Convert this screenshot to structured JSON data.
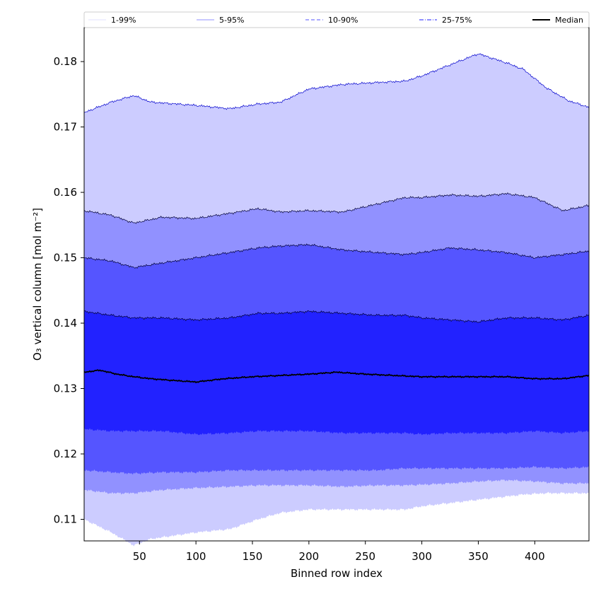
{
  "chart_data": {
    "type": "area",
    "xlabel": "Binned row index",
    "ylabel": "O₃ vertical column [mol m⁻²]",
    "xlim": [
      1,
      448
    ],
    "ylim": [
      0.1067,
      0.1852
    ],
    "xticks": [
      50,
      100,
      150,
      200,
      250,
      300,
      350,
      400
    ],
    "yticks": [
      0.11,
      0.12,
      0.13,
      0.14,
      0.15,
      0.16,
      0.17,
      0.18
    ],
    "grid": false,
    "legend_position": "top",
    "bands": [
      {
        "name": "1-99%",
        "color": "#ccccff",
        "edge_color": "#0000cc",
        "x": [
          1,
          25,
          45,
          60,
          100,
          130,
          155,
          175,
          200,
          230,
          260,
          285,
          300,
          325,
          350,
          375,
          390,
          410,
          430,
          448
        ],
        "upper": [
          0.1722,
          0.1738,
          0.1748,
          0.1738,
          0.1733,
          0.1728,
          0.1735,
          0.1738,
          0.1758,
          0.1765,
          0.1768,
          0.177,
          0.1778,
          0.1795,
          0.1812,
          0.1798,
          0.1788,
          0.176,
          0.174,
          0.173
        ],
        "lower": [
          0.11,
          0.108,
          0.106,
          0.107,
          0.108,
          0.1085,
          0.11,
          0.111,
          0.1115,
          0.1115,
          0.1115,
          0.1115,
          0.112,
          0.1125,
          0.113,
          0.1135,
          0.1138,
          0.114,
          0.114,
          0.114
        ]
      },
      {
        "name": "5-95%",
        "color": "#9191ff",
        "edge_color": "#000033",
        "x": [
          1,
          25,
          45,
          70,
          100,
          130,
          155,
          175,
          200,
          230,
          260,
          285,
          300,
          325,
          350,
          375,
          400,
          425,
          448
        ],
        "upper": [
          0.1572,
          0.1565,
          0.1553,
          0.1562,
          0.156,
          0.1568,
          0.1575,
          0.157,
          0.1572,
          0.157,
          0.1582,
          0.1592,
          0.1592,
          0.1596,
          0.1594,
          0.1598,
          0.1592,
          0.1572,
          0.158
        ],
        "lower": [
          0.1145,
          0.114,
          0.114,
          0.1145,
          0.1148,
          0.115,
          0.1152,
          0.1152,
          0.1152,
          0.115,
          0.1152,
          0.1152,
          0.1153,
          0.1155,
          0.1158,
          0.116,
          0.1158,
          0.1155,
          0.1155
        ]
      },
      {
        "name": "10-90%",
        "color": "#5555ff",
        "edge_color": "#000033",
        "x": [
          1,
          25,
          45,
          70,
          100,
          130,
          155,
          175,
          200,
          230,
          260,
          285,
          300,
          325,
          350,
          375,
          400,
          425,
          448
        ],
        "upper": [
          0.15,
          0.1495,
          0.1485,
          0.1492,
          0.15,
          0.1508,
          0.1515,
          0.1518,
          0.152,
          0.1512,
          0.1508,
          0.1505,
          0.1508,
          0.1515,
          0.1512,
          0.1508,
          0.15,
          0.1505,
          0.151
        ],
        "lower": [
          0.1175,
          0.1172,
          0.117,
          0.1172,
          0.1172,
          0.1175,
          0.1175,
          0.1175,
          0.1175,
          0.1175,
          0.1175,
          0.1178,
          0.1178,
          0.1178,
          0.1178,
          0.1178,
          0.118,
          0.1178,
          0.118
        ]
      },
      {
        "name": "25-75%",
        "color": "#2222ff",
        "edge_color": "#000033",
        "x": [
          1,
          25,
          45,
          70,
          100,
          130,
          155,
          175,
          200,
          230,
          260,
          285,
          300,
          325,
          350,
          375,
          400,
          425,
          448
        ],
        "upper": [
          0.1418,
          0.1412,
          0.1408,
          0.1408,
          0.1405,
          0.1408,
          0.1415,
          0.1415,
          0.1418,
          0.1415,
          0.1412,
          0.1412,
          0.1408,
          0.1405,
          0.1402,
          0.1408,
          0.1408,
          0.1405,
          0.1412
        ],
        "lower": [
          0.1238,
          0.1235,
          0.1235,
          0.1235,
          0.123,
          0.1232,
          0.1235,
          0.1235,
          0.1235,
          0.1232,
          0.1232,
          0.1232,
          0.123,
          0.1232,
          0.1232,
          0.1232,
          0.1235,
          0.1232,
          0.1235
        ]
      }
    ],
    "series": [
      {
        "name": "Median",
        "color": "#000000",
        "x": [
          1,
          15,
          30,
          45,
          60,
          75,
          100,
          125,
          150,
          175,
          200,
          225,
          250,
          275,
          300,
          325,
          350,
          375,
          400,
          425,
          448
        ],
        "values": [
          0.1325,
          0.1328,
          0.1322,
          0.1318,
          0.1315,
          0.1313,
          0.131,
          0.1315,
          0.1318,
          0.132,
          0.1322,
          0.1325,
          0.1322,
          0.132,
          0.1318,
          0.1318,
          0.1318,
          0.1318,
          0.1315,
          0.1315,
          0.132
        ]
      }
    ],
    "legend": [
      {
        "label": "1-99%",
        "color": "#ccccff",
        "style": "solid"
      },
      {
        "label": "5-95%",
        "color": "#9191ff",
        "style": "solid"
      },
      {
        "label": "10-90%",
        "color": "#5555ff",
        "style": "dashed"
      },
      {
        "label": "25-75%",
        "color": "#2222ff",
        "style": "dashdot"
      },
      {
        "label": "Median",
        "color": "#000000",
        "style": "solid"
      }
    ]
  }
}
